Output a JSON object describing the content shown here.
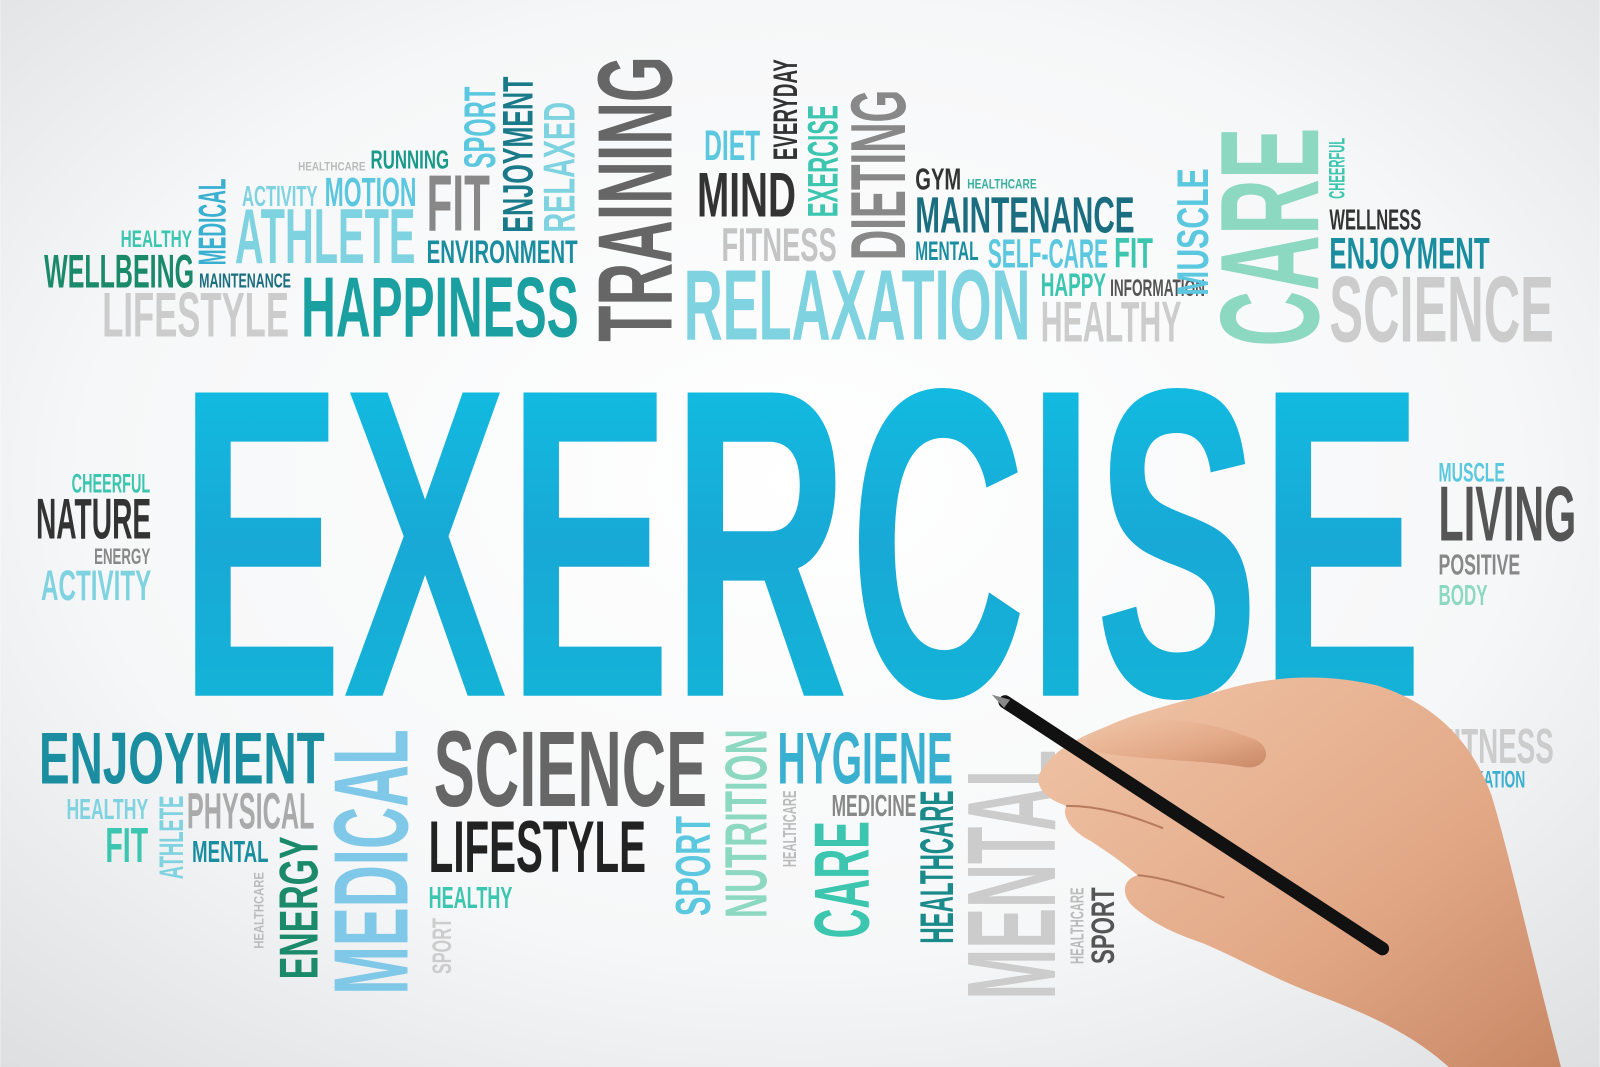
{
  "words": [
    "HEALTHCARE",
    "RUNNING",
    "SPORT",
    "ENJOYMENT",
    "RELAXED",
    "TRAINING",
    "DIET",
    "EVERYDAY",
    "EXERCISE",
    "DIETING",
    "MIND",
    "FITNESS",
    "GYM",
    "HEALTHCARE",
    "MAINTENANCE",
    "MENTAL",
    "SELF-CARE",
    "FIT",
    "HAPPY",
    "INFORMATION",
    "HEALTHY",
    "MUSCLE",
    "CARE",
    "CHEERFUL",
    "WELLNESS",
    "ENJOYMENT",
    "SCIENCE",
    "ACTIVITY",
    "MOTION",
    "FIT",
    "MEDICAL",
    "HEALTHY",
    "ATHLETE",
    "ENVIRONMENT",
    "WELLBEING",
    "MAINTENANCE",
    "LIFESTYLE",
    "HAPPINESS",
    "RELAXATION",
    "EXERCISE",
    "CHEERFUL",
    "NATURE",
    "ENERGY",
    "ACTIVITY",
    "MUSCLE",
    "LIVING",
    "POSITIVE",
    "BODY",
    "ENJOYMENT",
    "HEALTHY",
    "PHYSICAL",
    "FIT",
    "ATHLETE",
    "MENTAL",
    "HEALTHCARE",
    "ENERGY",
    "MEDICAL",
    "SCIENCE",
    "LIFESTYLE",
    "HEALTHY",
    "SPORT",
    "SPORT",
    "NUTRITION",
    "HYGIENE",
    "HEALTHCARE",
    "MEDICINE",
    "CARE",
    "HEALTHCARE",
    "MENTAL",
    "HEALTHCARE",
    "SPORT",
    "FITNESS",
    "RELAXATION"
  ]
}
